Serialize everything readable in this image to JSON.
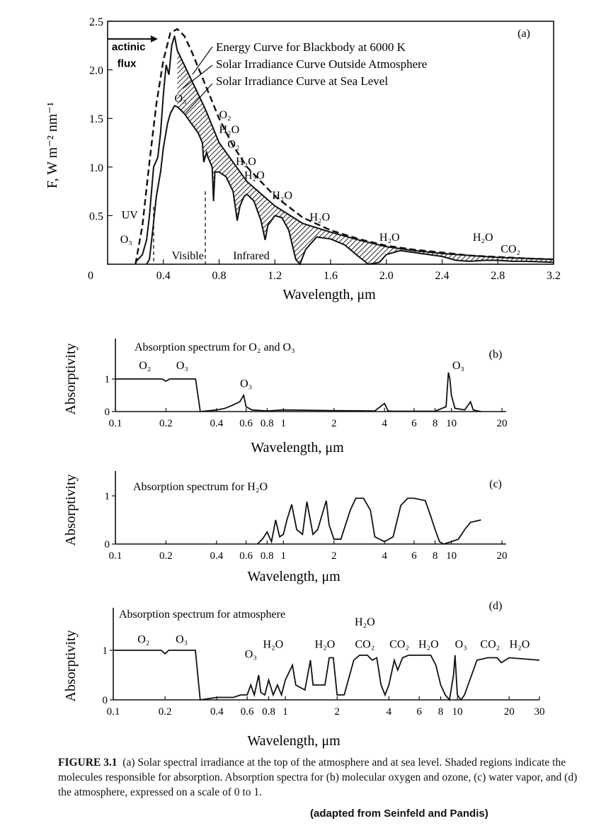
{
  "colors": {
    "ink": "#111111",
    "hatch": "#222222",
    "background": "#ffffff"
  },
  "chart_data": [
    {
      "type": "line",
      "panel_label": "(a)",
      "xlabel": "Wavelength, μm",
      "ylabel": "F,  W m⁻² nm⁻¹",
      "xlim": [
        0,
        3.2
      ],
      "ylim": [
        0,
        2.5
      ],
      "xticks": [
        "0",
        "0.4",
        "0.8",
        "1.2",
        "1.6",
        "2.0",
        "2.4",
        "2.8",
        "3.2"
      ],
      "yticks": [
        "0.5",
        "1.0",
        "1.5",
        "2.0",
        "2.5"
      ],
      "series": [
        {
          "name": "Energy Curve for Blackbody at 6000 K",
          "style": "dashed",
          "x": [
            0.2,
            0.25,
            0.3,
            0.35,
            0.4,
            0.45,
            0.5,
            0.55,
            0.6,
            0.7,
            0.8,
            0.9,
            1.0,
            1.2,
            1.4,
            1.6,
            1.8,
            2.0,
            2.2,
            2.4,
            2.6,
            2.8,
            3.0,
            3.2
          ],
          "y": [
            0.0,
            0.4,
            1.05,
            1.65,
            2.1,
            2.38,
            2.42,
            2.35,
            2.2,
            1.85,
            1.5,
            1.22,
            1.0,
            0.7,
            0.48,
            0.35,
            0.26,
            0.19,
            0.15,
            0.12,
            0.09,
            0.075,
            0.06,
            0.05
          ]
        },
        {
          "name": "Solar Irradiance Curve Outside Atmosphere",
          "style": "solid",
          "x": [
            0.2,
            0.25,
            0.28,
            0.3,
            0.33,
            0.36,
            0.38,
            0.4,
            0.42,
            0.44,
            0.46,
            0.48,
            0.5,
            0.55,
            0.6,
            0.7,
            0.8,
            0.9,
            1.0,
            1.2,
            1.4,
            1.6,
            1.8,
            2.0,
            2.2,
            2.4,
            2.6,
            2.8,
            3.0,
            3.2
          ],
          "y": [
            0.02,
            0.1,
            0.25,
            0.5,
            1.0,
            1.1,
            1.35,
            1.75,
            2.05,
            1.95,
            2.25,
            2.35,
            2.2,
            2.05,
            1.9,
            1.6,
            1.25,
            1.05,
            0.85,
            0.6,
            0.42,
            0.33,
            0.25,
            0.18,
            0.14,
            0.11,
            0.09,
            0.07,
            0.06,
            0.05
          ]
        },
        {
          "name": "Solar Irradiance Curve at Sea Level",
          "style": "solid",
          "x": [
            0.28,
            0.3,
            0.32,
            0.35,
            0.38,
            0.4,
            0.43,
            0.45,
            0.48,
            0.5,
            0.55,
            0.6,
            0.65,
            0.68,
            0.69,
            0.71,
            0.72,
            0.75,
            0.76,
            0.77,
            0.8,
            0.85,
            0.9,
            0.93,
            0.95,
            0.98,
            1.0,
            1.05,
            1.1,
            1.13,
            1.15,
            1.2,
            1.25,
            1.3,
            1.35,
            1.38,
            1.42,
            1.5,
            1.6,
            1.7,
            1.8,
            1.87,
            1.95,
            2.0,
            2.1,
            2.2,
            2.3,
            2.4,
            2.5,
            2.6,
            2.7,
            2.8,
            2.9,
            3.0,
            3.2
          ],
          "y": [
            0.0,
            0.05,
            0.3,
            0.7,
            0.95,
            1.2,
            1.45,
            1.55,
            1.63,
            1.62,
            1.55,
            1.45,
            1.35,
            1.25,
            1.05,
            1.15,
            1.1,
            1.0,
            0.65,
            0.95,
            0.95,
            0.9,
            0.75,
            0.45,
            0.6,
            0.7,
            0.72,
            0.65,
            0.45,
            0.25,
            0.4,
            0.5,
            0.48,
            0.35,
            0.05,
            0.0,
            0.15,
            0.28,
            0.26,
            0.2,
            0.08,
            0.0,
            0.02,
            0.1,
            0.14,
            0.12,
            0.1,
            0.08,
            0.04,
            0.03,
            0.04,
            0.04,
            0.03,
            0.03,
            0.02
          ]
        }
      ],
      "annotations": [
        {
          "text": "actinic",
          "x": 0.03,
          "y": 2.2
        },
        {
          "text": "flux",
          "x": 0.07,
          "y": 2.03
        },
        {
          "text": "O₃",
          "x": 0.48,
          "y": 1.67
        },
        {
          "text": "O₂",
          "x": 0.8,
          "y": 1.5
        },
        {
          "text": "H₂O",
          "x": 0.8,
          "y": 1.35
        },
        {
          "text": "O₂",
          "x": 0.86,
          "y": 1.2
        },
        {
          "text": "H₂O",
          "x": 0.92,
          "y": 1.02
        },
        {
          "text": "H₂O",
          "x": 0.98,
          "y": 0.88
        },
        {
          "text": "H₂O",
          "x": 1.18,
          "y": 0.67
        },
        {
          "text": "H₂O",
          "x": 1.45,
          "y": 0.45
        },
        {
          "text": "H₂O",
          "x": 1.95,
          "y": 0.24
        },
        {
          "text": "H₂O",
          "x": 2.62,
          "y": 0.24
        },
        {
          "text": "CO₂",
          "x": 2.82,
          "y": 0.12
        },
        {
          "text": "UV",
          "x": 0.1,
          "y": 0.47
        },
        {
          "text": "O₃",
          "x": 0.09,
          "y": 0.22
        },
        {
          "text": "Visible",
          "x": 0.46,
          "y": 0.05
        },
        {
          "text": "Infrared",
          "x": 0.9,
          "y": 0.05
        }
      ]
    },
    {
      "type": "line",
      "panel_label": "(b)",
      "title": "Absorption spectrum for O₂ and O₃",
      "xlabel": "Wavelength, μm",
      "ylabel": "Absorptivity",
      "xscale": "log",
      "xlim": [
        0.1,
        20
      ],
      "ylim": [
        0,
        1
      ],
      "xticks": [
        "0.1",
        "0.2",
        "0.4",
        "0.6",
        "0.8",
        "1",
        "2",
        "4",
        "6",
        "8",
        "10",
        "20"
      ],
      "yticks": [
        "0",
        "1"
      ],
      "series": [
        {
          "x": [
            0.1,
            0.19,
            0.2,
            0.21,
            0.3,
            0.31,
            0.32,
            0.4,
            0.45,
            0.5,
            0.55,
            0.58,
            0.6,
            0.65,
            0.8,
            1.0,
            2.0,
            3.5,
            4.0,
            4.2,
            4.5,
            6.0,
            8.0,
            9.3,
            9.6,
            9.8,
            10.0,
            10.5,
            12.0,
            13.0,
            13.5,
            15.0
          ],
          "y": [
            1.0,
            1.0,
            0.93,
            1.0,
            1.0,
            0.5,
            0.0,
            0.05,
            0.1,
            0.2,
            0.3,
            0.5,
            0.15,
            0.05,
            0.02,
            0.05,
            0.03,
            0.02,
            0.25,
            0.02,
            0.01,
            0.01,
            0.01,
            0.15,
            1.2,
            1.0,
            0.5,
            0.1,
            0.05,
            0.3,
            0.05,
            0.0
          ]
        }
      ],
      "annotations": [
        {
          "text": "O₂",
          "x": 0.15,
          "y": 1.3
        },
        {
          "text": "O₃",
          "x": 0.25,
          "y": 1.3
        },
        {
          "text": "O₃",
          "x": 0.6,
          "y": 0.75
        },
        {
          "text": "O₃",
          "x": 11,
          "y": 1.3
        }
      ]
    },
    {
      "type": "line",
      "panel_label": "(c)",
      "title": "Absorption spectrum for H₂O",
      "xlabel": "Wavelength, μm",
      "ylabel": "Absorptivity",
      "xscale": "log",
      "xlim": [
        0.1,
        20
      ],
      "ylim": [
        0,
        1
      ],
      "xticks": [
        "0.1",
        "0.2",
        "0.4",
        "0.6",
        "0.8",
        "1",
        "2",
        "4",
        "6",
        "8",
        "10",
        "20"
      ],
      "yticks": [
        "0",
        "1"
      ],
      "series": [
        {
          "x": [
            0.7,
            0.75,
            0.8,
            0.85,
            0.9,
            0.95,
            1.0,
            1.05,
            1.12,
            1.2,
            1.3,
            1.38,
            1.5,
            1.6,
            1.8,
            1.87,
            2.0,
            2.2,
            2.5,
            2.7,
            3.0,
            3.3,
            3.5,
            4.0,
            4.5,
            5.0,
            5.5,
            6.0,
            7.0,
            7.5,
            8.0,
            8.5,
            9.0,
            10.0,
            11.0,
            12.0,
            13.0,
            15.0
          ],
          "y": [
            0.0,
            0.1,
            0.25,
            0.05,
            0.5,
            0.15,
            0.2,
            0.5,
            0.82,
            0.3,
            0.2,
            0.88,
            0.2,
            0.3,
            0.9,
            0.4,
            0.1,
            0.1,
            0.7,
            0.95,
            0.95,
            0.7,
            0.15,
            0.05,
            0.15,
            0.8,
            0.95,
            0.95,
            0.9,
            0.6,
            0.3,
            0.05,
            0.0,
            0.05,
            0.1,
            0.3,
            0.45,
            0.5
          ]
        }
      ]
    },
    {
      "type": "line",
      "panel_label": "(d)",
      "title": "Absorption spectrum for atmosphere",
      "xlabel": "Wavelength, μm",
      "ylabel": "Absorptivity",
      "xscale": "log",
      "xlim": [
        0.1,
        30
      ],
      "ylim": [
        0,
        1
      ],
      "xticks": [
        "0.1",
        "0.2",
        "0.4",
        "0.6",
        "0.8",
        "1",
        "2",
        "4",
        "6",
        "8",
        "10",
        "20",
        "30"
      ],
      "yticks": [
        "0",
        "1"
      ],
      "series": [
        {
          "x": [
            0.1,
            0.19,
            0.2,
            0.21,
            0.3,
            0.31,
            0.32,
            0.4,
            0.5,
            0.55,
            0.6,
            0.63,
            0.66,
            0.7,
            0.72,
            0.76,
            0.8,
            0.85,
            0.9,
            0.95,
            1.0,
            1.1,
            1.15,
            1.3,
            1.4,
            1.45,
            1.7,
            1.8,
            1.9,
            2.0,
            2.2,
            2.5,
            2.7,
            3.0,
            3.2,
            3.4,
            3.6,
            3.8,
            4.0,
            4.3,
            4.5,
            4.8,
            5.2,
            6.0,
            7.0,
            7.5,
            8.0,
            8.5,
            9.0,
            9.5,
            9.7,
            10.0,
            10.5,
            11.0,
            13.0,
            15.0,
            17.0,
            18.0,
            20.0,
            30.0
          ],
          "y": [
            1.0,
            1.0,
            0.93,
            1.0,
            1.0,
            0.5,
            0.0,
            0.05,
            0.05,
            0.1,
            0.1,
            0.3,
            0.1,
            0.5,
            0.15,
            0.1,
            0.4,
            0.1,
            0.3,
            0.1,
            0.4,
            0.7,
            0.3,
            0.2,
            0.8,
            0.3,
            0.3,
            0.85,
            0.85,
            0.1,
            0.1,
            0.8,
            0.9,
            0.9,
            0.8,
            0.85,
            0.3,
            0.1,
            0.3,
            0.8,
            0.6,
            0.85,
            0.9,
            0.9,
            0.9,
            0.7,
            0.3,
            0.1,
            0.0,
            0.5,
            0.9,
            0.1,
            0.0,
            0.1,
            0.8,
            0.85,
            0.85,
            0.75,
            0.85,
            0.8
          ]
        }
      ],
      "annotations": [
        {
          "text": "O₂",
          "x": 0.15,
          "y": 1.15
        },
        {
          "text": "O₃",
          "x": 0.25,
          "y": 1.15
        },
        {
          "text": "O₃",
          "x": 0.63,
          "y": 0.85
        },
        {
          "text": "H₂O",
          "x": 0.85,
          "y": 1.05
        },
        {
          "text": "H₂O",
          "x": 1.7,
          "y": 1.05
        },
        {
          "text": "H₂O",
          "x": 2.9,
          "y": 1.5
        },
        {
          "text": "CO₂",
          "x": 2.9,
          "y": 1.05
        },
        {
          "text": "CO₂",
          "x": 4.6,
          "y": 1.05
        },
        {
          "text": "H₂O",
          "x": 6.8,
          "y": 1.05
        },
        {
          "text": "O₃",
          "x": 10.5,
          "y": 1.05
        },
        {
          "text": "CO₂",
          "x": 15.5,
          "y": 1.05
        },
        {
          "text": "H₂O",
          "x": 23,
          "y": 1.05
        }
      ]
    }
  ],
  "caption": {
    "label": "FIGURE 3.1",
    "text": "(a) Solar spectral irradiance at the top of the atmosphere and at sea level. Shaded regions indicate the molecules responsible for absorption. Absorption spectra for (b) molecular oxygen and ozone, (c) water vapor, and (d) the atmosphere, expressed on a scale of 0 to 1."
  },
  "credit": "(adapted from Seinfeld and Pandis)"
}
